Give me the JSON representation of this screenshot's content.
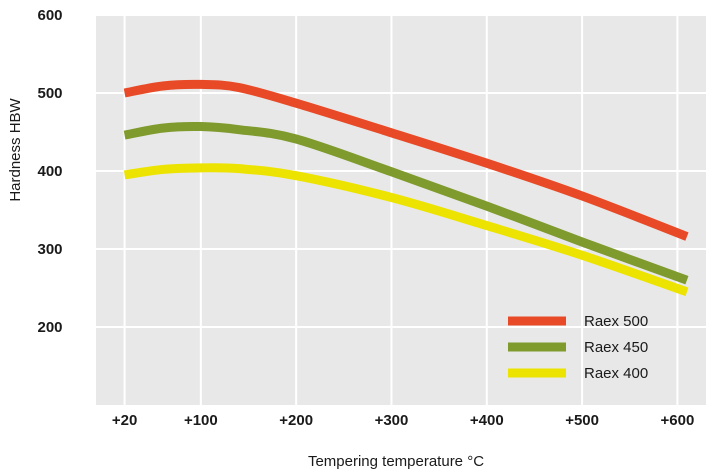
{
  "chart_data": {
    "type": "line",
    "xlabel": "Tempering temperature °C",
    "ylabel": "Hardness HBW",
    "xlim": [
      -10,
      630
    ],
    "ylim": [
      100,
      600
    ],
    "x_ticks": [
      {
        "value": 20,
        "label": "+20"
      },
      {
        "value": 100,
        "label": "+100"
      },
      {
        "value": 200,
        "label": "+200"
      },
      {
        "value": 300,
        "label": "+300"
      },
      {
        "value": 400,
        "label": "+400"
      },
      {
        "value": 500,
        "label": "+500"
      },
      {
        "value": 600,
        "label": "+600"
      }
    ],
    "y_ticks": [
      {
        "value": 200,
        "label": "200"
      },
      {
        "value": 300,
        "label": "300"
      },
      {
        "value": 400,
        "label": "400"
      },
      {
        "value": 500,
        "label": "500"
      },
      {
        "value": 600,
        "label": "600"
      }
    ],
    "grid": true,
    "legend_position": "bottom-right",
    "series": [
      {
        "name": "Raex 500",
        "color": "#e84a27",
        "x": [
          20,
          60,
          100,
          140,
          200,
          300,
          400,
          500,
          610
        ],
        "y": [
          500,
          509,
          511,
          507,
          487,
          449,
          410,
          368,
          316
        ]
      },
      {
        "name": "Raex 450",
        "color": "#7f9a2d",
        "x": [
          20,
          60,
          100,
          140,
          200,
          300,
          400,
          500,
          610
        ],
        "y": [
          446,
          455,
          457,
          453,
          441,
          399,
          355,
          309,
          260
        ]
      },
      {
        "name": "Raex 400",
        "color": "#ece400",
        "x": [
          20,
          60,
          100,
          140,
          200,
          300,
          400,
          500,
          610
        ],
        "y": [
          395,
          402,
          404,
          403,
          394,
          366,
          330,
          292,
          245
        ]
      }
    ],
    "colors": {
      "plot_background": "#e8e8e8",
      "gridline": "#ffffff",
      "text": "#1a1a1a"
    }
  }
}
